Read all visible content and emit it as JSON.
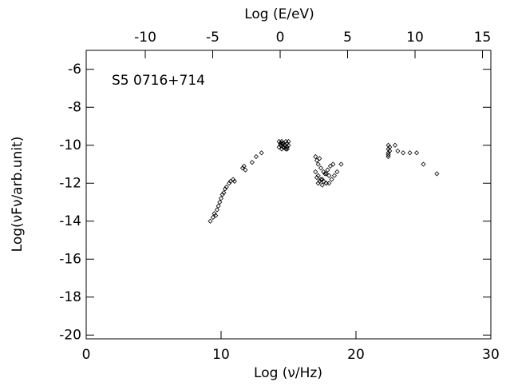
{
  "chart_data": {
    "type": "scatter",
    "annotation": "S5 0716+714",
    "xlabel": "Log (ν/Hz)",
    "ylabel": "Log(νFν/arb.unit)",
    "x2label": "Log (E/eV)",
    "color": "#000000",
    "marker": "diamond",
    "xlim": [
      0,
      30
    ],
    "xticks": [
      0,
      10,
      20,
      30
    ],
    "x2lim": [
      -14.38,
      15.62
    ],
    "x2ticks": [
      -10,
      -5,
      0,
      5,
      10,
      15
    ],
    "ylim": [
      -20.2,
      -5
    ],
    "yticks": [
      -20,
      -18,
      -16,
      -14,
      -12,
      -10,
      -8,
      -6
    ],
    "x": [
      9.2,
      9.4,
      9.5,
      9.6,
      9.7,
      9.8,
      9.9,
      10.0,
      10.1,
      10.2,
      10.3,
      10.4,
      10.6,
      10.7,
      10.9,
      11.0,
      11.6,
      11.7,
      11.8,
      12.3,
      12.6,
      13.0,
      14.3,
      14.4,
      14.5,
      14.6,
      14.7,
      14.8,
      14.9,
      15.0,
      14.3,
      14.5,
      14.7,
      14.9,
      14.4,
      14.6,
      14.8,
      15.0,
      14.5,
      14.7,
      14.9,
      17.0,
      17.1,
      17.2,
      17.3,
      17.4,
      17.6,
      17.8,
      18.0,
      18.2,
      17.0,
      17.2,
      17.4,
      17.6,
      17.8,
      18.0,
      17.1,
      17.3,
      17.5,
      17.7,
      17.9,
      18.1,
      17.2,
      17.5,
      17.8,
      18.3,
      18.4,
      18.6,
      18.9,
      22.4,
      22.4,
      22.4,
      22.4,
      22.4,
      22.5,
      22.5,
      22.9,
      23.1,
      23.5,
      24.0,
      24.5,
      25.0,
      26.0
    ],
    "y": [
      -14.0,
      -13.8,
      -13.6,
      -13.7,
      -13.4,
      -13.2,
      -13.0,
      -12.8,
      -12.6,
      -12.5,
      -12.3,
      -12.2,
      -12.0,
      -11.9,
      -11.8,
      -11.9,
      -11.2,
      -11.1,
      -11.3,
      -10.9,
      -10.6,
      -10.4,
      -9.8,
      -9.9,
      -9.8,
      -9.9,
      -10.0,
      -9.8,
      -9.9,
      -9.8,
      -10.1,
      -10.2,
      -10.1,
      -10.2,
      -10.0,
      -10.1,
      -10.2,
      -10.0,
      -9.9,
      -10.0,
      -10.1,
      -10.6,
      -10.8,
      -11.0,
      -10.7,
      -11.2,
      -11.4,
      -11.5,
      -11.6,
      -11.8,
      -11.4,
      -11.6,
      -11.8,
      -11.9,
      -12.0,
      -12.0,
      -11.7,
      -11.9,
      -11.8,
      -11.5,
      -11.3,
      -11.1,
      -12.0,
      -12.1,
      -12.0,
      -11.0,
      -11.6,
      -11.4,
      -11.0,
      -10.0,
      -10.2,
      -10.4,
      -10.6,
      -10.5,
      -10.3,
      -10.1,
      -10.0,
      -10.3,
      -10.4,
      -10.4,
      -10.4,
      -11.0,
      -11.5
    ]
  }
}
